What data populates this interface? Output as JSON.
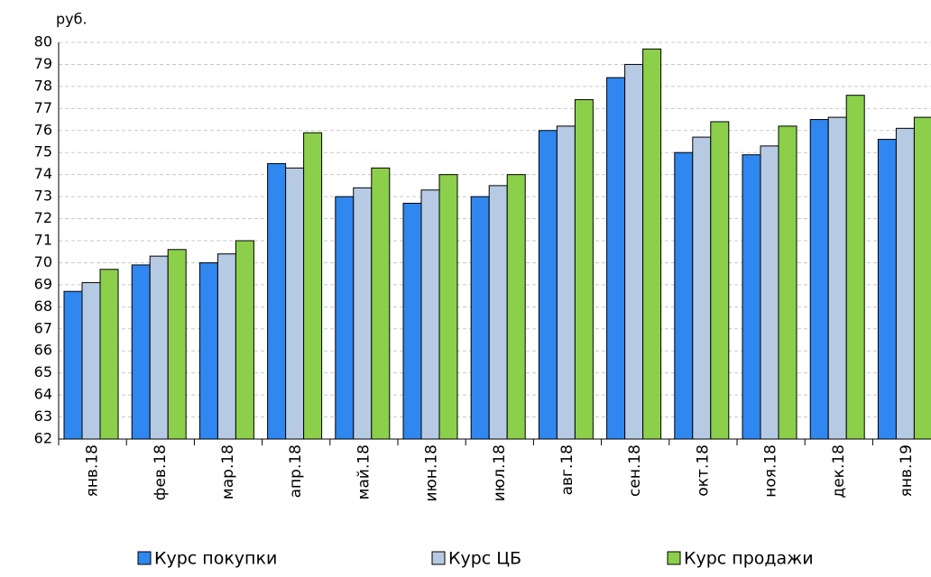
{
  "chart_data": {
    "type": "bar",
    "ylabel": "руб.",
    "categories": [
      "янв.18",
      "фев.18",
      "мар.18",
      "апр.18",
      "май.18",
      "июн.18",
      "июл.18",
      "авг.18",
      "сен.18",
      "окт.18",
      "ноя.18",
      "дек.18",
      "янв.19"
    ],
    "series": [
      {
        "name": "Курс покупки",
        "color": "#2f87ef",
        "values": [
          68.7,
          69.9,
          70.0,
          74.5,
          73.0,
          72.7,
          73.0,
          76.0,
          78.4,
          75.0,
          74.9,
          76.5,
          75.6
        ]
      },
      {
        "name": "Курс ЦБ",
        "color": "#b7cae3",
        "values": [
          69.1,
          70.3,
          70.4,
          74.3,
          73.4,
          73.3,
          73.5,
          76.2,
          79.0,
          75.7,
          75.3,
          76.6,
          76.1
        ]
      },
      {
        "name": "Курс продажи",
        "color": "#8ccf4a",
        "values": [
          69.7,
          70.6,
          71.0,
          75.9,
          74.3,
          74.0,
          74.0,
          77.4,
          79.7,
          76.4,
          76.2,
          77.6,
          76.6
        ]
      }
    ],
    "ylim": [
      62,
      80
    ],
    "yticks": [
      62,
      63,
      64,
      65,
      66,
      67,
      68,
      69,
      70,
      71,
      72,
      73,
      74,
      75,
      76,
      77,
      78,
      79,
      80
    ],
    "grid": true,
    "legend": "bottom"
  }
}
